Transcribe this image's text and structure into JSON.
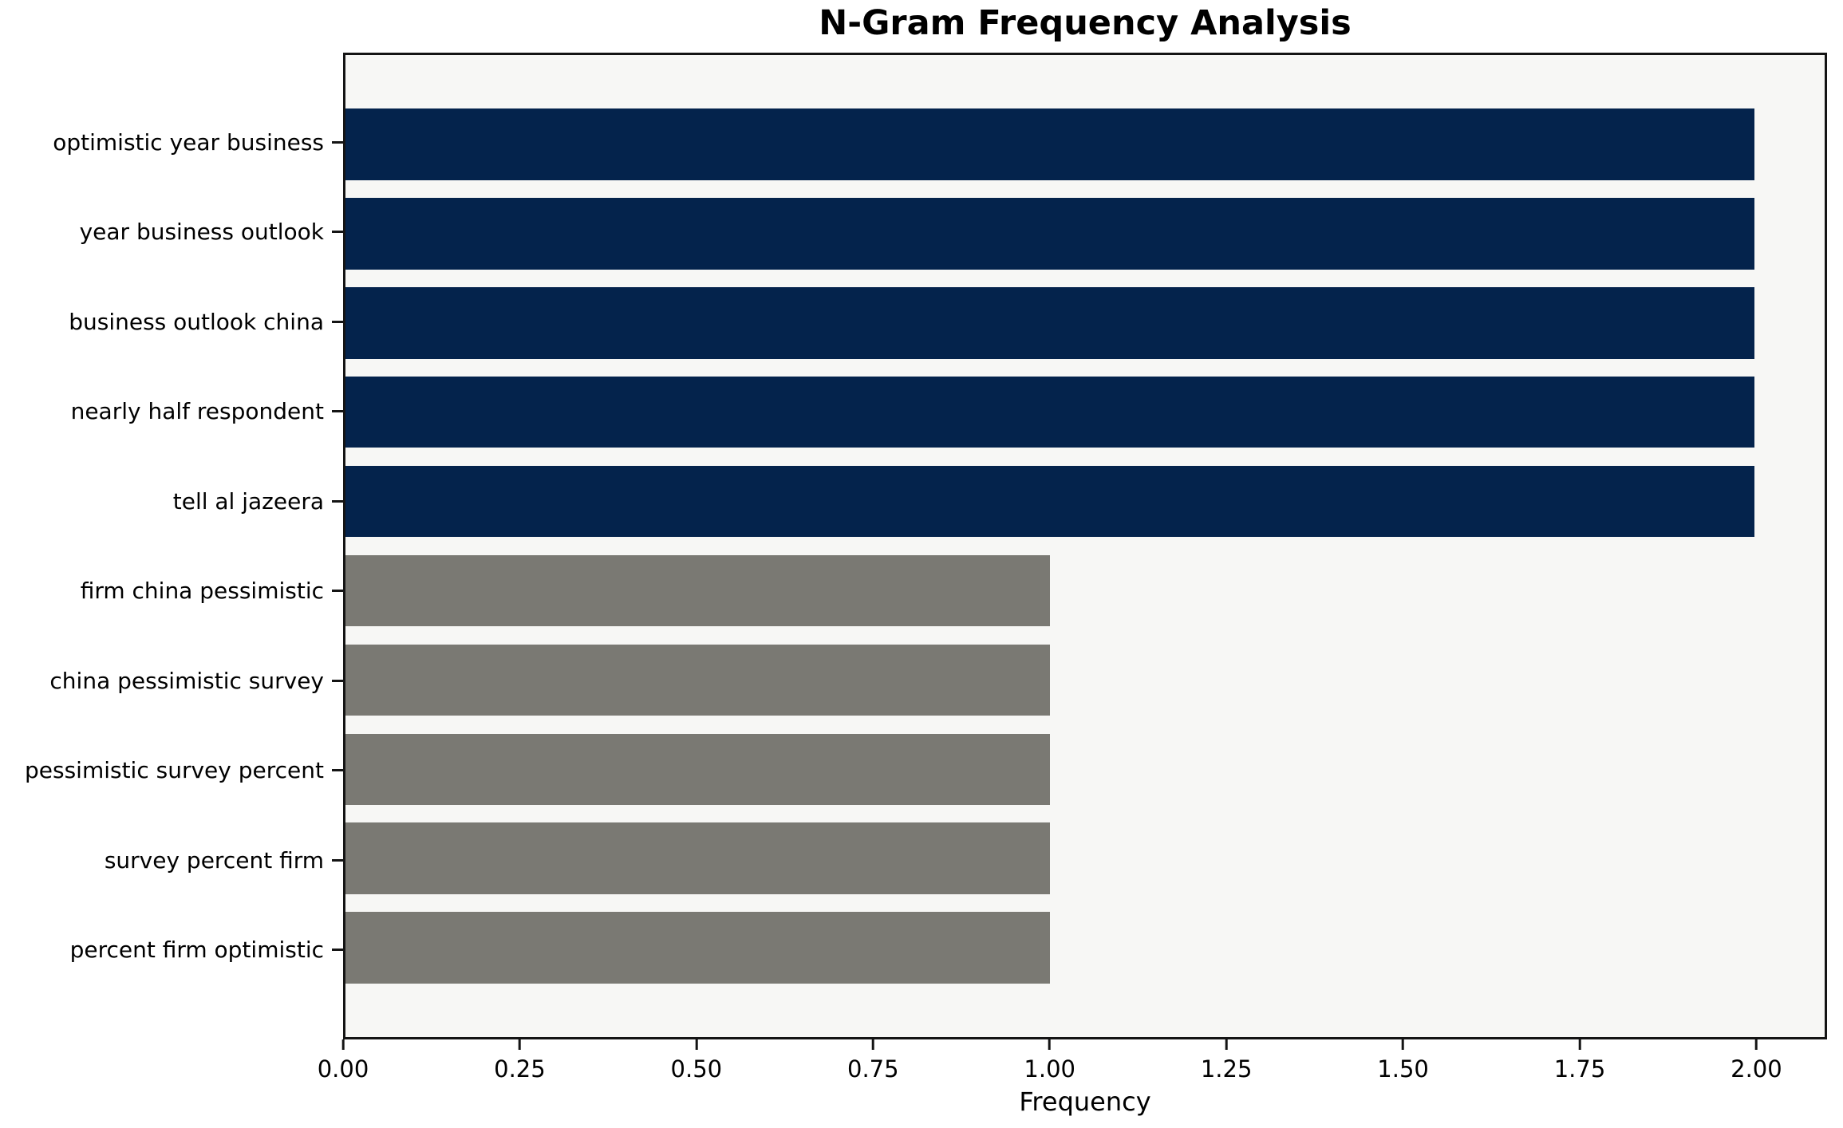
{
  "figure": {
    "background_color": "#ffffff",
    "plot_background_color": "#f7f7f5",
    "spine_color": "#141414",
    "text_color": "#000000"
  },
  "chart_data": {
    "type": "bar",
    "orientation": "horizontal",
    "title": "N-Gram Frequency Analysis",
    "xlabel": "Frequency",
    "ylabel": "",
    "grid": false,
    "legend": null,
    "categories": [
      "optimistic year business",
      "year business outlook",
      "business outlook china",
      "nearly half respondent",
      "tell al jazeera",
      "firm china pessimistic",
      "china pessimistic survey",
      "pessimistic survey percent",
      "survey percent firm",
      "percent firm optimistic"
    ],
    "values": [
      2,
      2,
      2,
      2,
      2,
      1,
      1,
      1,
      1,
      1
    ],
    "bar_colors": [
      "#04234c",
      "#04234c",
      "#04234c",
      "#04234c",
      "#04234c",
      "#7a7973",
      "#7a7973",
      "#7a7973",
      "#7a7973",
      "#7a7973"
    ],
    "xlim": [
      0,
      2.1
    ],
    "xticks": [
      0,
      0.25,
      0.5,
      0.75,
      1.0,
      1.25,
      1.5,
      1.75,
      2.0
    ],
    "xtick_labels": [
      "0.00",
      "0.25",
      "0.50",
      "0.75",
      "1.00",
      "1.25",
      "1.50",
      "1.75",
      "2.00"
    ],
    "bar_height_ratio": 0.8
  }
}
